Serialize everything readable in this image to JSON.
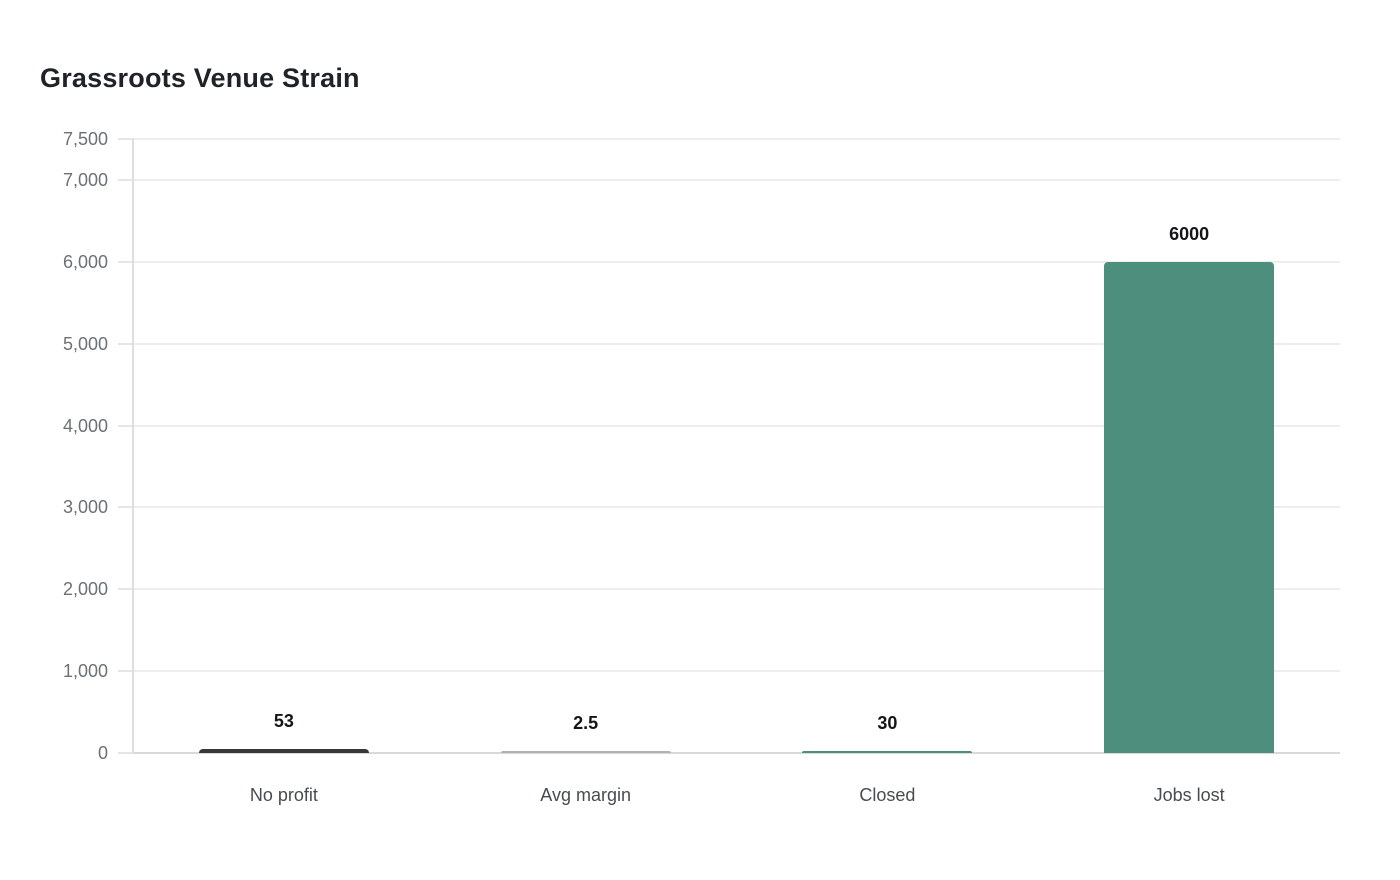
{
  "chart_data": {
    "type": "bar",
    "title": "Grassroots Venue Strain",
    "categories": [
      "No profit",
      "Avg margin",
      "Closed",
      "Jobs lost"
    ],
    "values": [
      53,
      2.5,
      30,
      6000
    ],
    "value_labels": [
      "53",
      "2.5",
      "30",
      "6000"
    ],
    "series": [
      {
        "name": "Grassroots Venue Strain",
        "values": [
          53,
          2.5,
          30,
          6000
        ]
      }
    ],
    "bar_colors": [
      "#383838",
      "#b2b2b2",
      "#4e8e7c",
      "#4e8e7c"
    ],
    "xlabel": "",
    "ylabel": "",
    "ylim": [
      0,
      7500
    ],
    "y_ticks": [
      {
        "value": 0,
        "label": "0"
      },
      {
        "value": 1000,
        "label": "1,000"
      },
      {
        "value": 2000,
        "label": "2,000"
      },
      {
        "value": 3000,
        "label": "3,000"
      },
      {
        "value": 4000,
        "label": "4,000"
      },
      {
        "value": 5000,
        "label": "5,000"
      },
      {
        "value": 6000,
        "label": "6,000"
      },
      {
        "value": 7000,
        "label": "7,000"
      },
      {
        "value": 7500,
        "label": "7,500"
      }
    ],
    "grid": "horizontal-on",
    "legend": "none"
  },
  "colors": {
    "background": "#ffffff",
    "accent_teal": "#4e8e7c",
    "bar_dark": "#383838",
    "bar_light_gray": "#b2b2b2",
    "gridline": "#ededed",
    "baseline": "#d7d9da",
    "y_axis_line": "#dddfdf",
    "title_text": "#1f2328",
    "y_tick_text": "#6c7176",
    "x_tick_text": "#474c50",
    "value_label_text": "#141618"
  }
}
